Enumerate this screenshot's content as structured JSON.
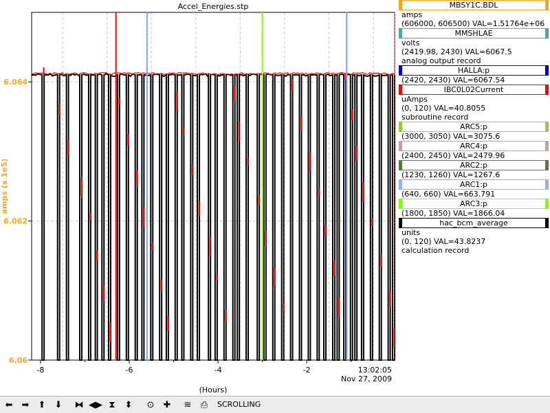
{
  "chart_data": {
    "type": "line",
    "title": "Accel_Energies.stp",
    "xlabel": "(Hours)",
    "ylabel": "amps (x 1e5)",
    "xlim": [
      -8.2,
      -0.02
    ],
    "ylim": [
      6.06,
      6.065
    ],
    "x_ticks": [
      -8,
      -6,
      -4,
      -2
    ],
    "x_tick_labels": [
      "-8",
      "-6",
      "-4",
      "-2"
    ],
    "y_ticks": [
      6.06,
      6.062,
      6.064
    ],
    "y_tick_labels": [
      "6.06",
      "6.062",
      "6.064"
    ],
    "time_label": "13:02:05",
    "date_label": "Nov 27, 2009",
    "baseline_value": 6.0641,
    "dropout_value": 6.06,
    "dropout_times": [
      -7.95,
      -7.6,
      -7.4,
      -7.1,
      -6.9,
      -6.75,
      -6.6,
      -6.45,
      -6.25,
      -6.05,
      -5.85,
      -5.7,
      -5.5,
      -5.3,
      -5.15,
      -4.95,
      -4.8,
      -4.6,
      -4.45,
      -4.2,
      -4.05,
      -3.85,
      -3.65,
      -3.55,
      -3.35,
      -3.1,
      -2.95,
      -2.75,
      -2.55,
      -2.35,
      -2.15,
      -1.95,
      -1.75,
      -1.6,
      -1.4,
      -1.3,
      -1.15,
      -1.0,
      -0.9,
      -0.75,
      -0.55,
      -0.35,
      -0.15,
      -0.05
    ],
    "markers": [
      {
        "x": -6.3,
        "color": "#ff0000"
      },
      {
        "x": -5.6,
        "color": "#7fa2ff"
      },
      {
        "x": -3.0,
        "color": "#7fff00"
      },
      {
        "x": -1.1,
        "color": "#7fa2ff"
      },
      {
        "x": -0.02,
        "color": "#ff0000"
      }
    ],
    "grid": true,
    "series_colors": {
      "primary": "#ff0000",
      "secondary": "#000000"
    },
    "axis_color": "#f5a623"
  },
  "legend": [
    {
      "name": "MBSY1C.BDL",
      "tag_color": "#f5a623",
      "lines": [
        "amps",
        "(606000, 606500)  VAL=1.51764e+06"
      ]
    },
    {
      "name": "MMSHLAE",
      "tag_color": "#4fa3a0",
      "lines": [
        "volts",
        "(2419.98, 2430) VAL=6067.5",
        "analog output record"
      ]
    },
    {
      "name": "HALLA:p",
      "tag_color": "#0000cc",
      "lines": [
        "(2420, 2430) VAL=6067.54"
      ]
    },
    {
      "name": "IBC0L02Current",
      "tag_color": "#ff0000",
      "lines": [
        "uAmps",
        "(0, 120) VAL=40.8055",
        "subroutine record"
      ]
    },
    {
      "name": "ARC5:p",
      "tag_color": "#9acd32",
      "lines": [
        "(3000, 3050) VAL=3075.6"
      ]
    },
    {
      "name": "ARC4:p",
      "tag_color": "#c8a0a0",
      "lines": [
        "(2400, 2450) VAL=2479.96"
      ]
    },
    {
      "name": "ARC2:p",
      "tag_color": "#557a3a",
      "lines": [
        "(1230, 1260) VAL=1267.6"
      ]
    },
    {
      "name": "ARC1:p",
      "tag_color": "#8fb0ff",
      "lines": [
        "(640, 660) VAL=663.791"
      ]
    },
    {
      "name": "ARC3:p",
      "tag_color": "#7fff00",
      "lines": [
        "(1800, 1850) VAL=1866.04"
      ]
    },
    {
      "name": "hac_bcm_average",
      "tag_color": "#000000",
      "lines": [
        "units",
        "(0, 120) VAL=43.8237",
        "calculation record"
      ]
    }
  ],
  "toolbar": {
    "buttons": [
      {
        "name": "left-arrow-icon",
        "glyph": "⬅"
      },
      {
        "name": "right-arrow-icon",
        "glyph": "➡"
      },
      {
        "name": "up-arrow-icon",
        "glyph": "⬆"
      },
      {
        "name": "down-arrow-icon",
        "glyph": "⬇"
      },
      {
        "name": "zoom-in-horizontal-icon",
        "glyph": "⧓"
      },
      {
        "name": "zoom-out-horizontal-icon",
        "glyph": "◀▶"
      },
      {
        "name": "zoom-in-vertical-icon",
        "glyph": "⧗"
      },
      {
        "name": "zoom-out-vertical-icon",
        "glyph": "⬍"
      },
      {
        "name": "center-icon",
        "glyph": "⊙"
      },
      {
        "name": "add-icon",
        "glyph": "✚"
      },
      {
        "name": "config-icon",
        "glyph": "≋"
      },
      {
        "name": "print-icon",
        "glyph": "⎙"
      }
    ],
    "mode_label": "SCROLLING"
  }
}
